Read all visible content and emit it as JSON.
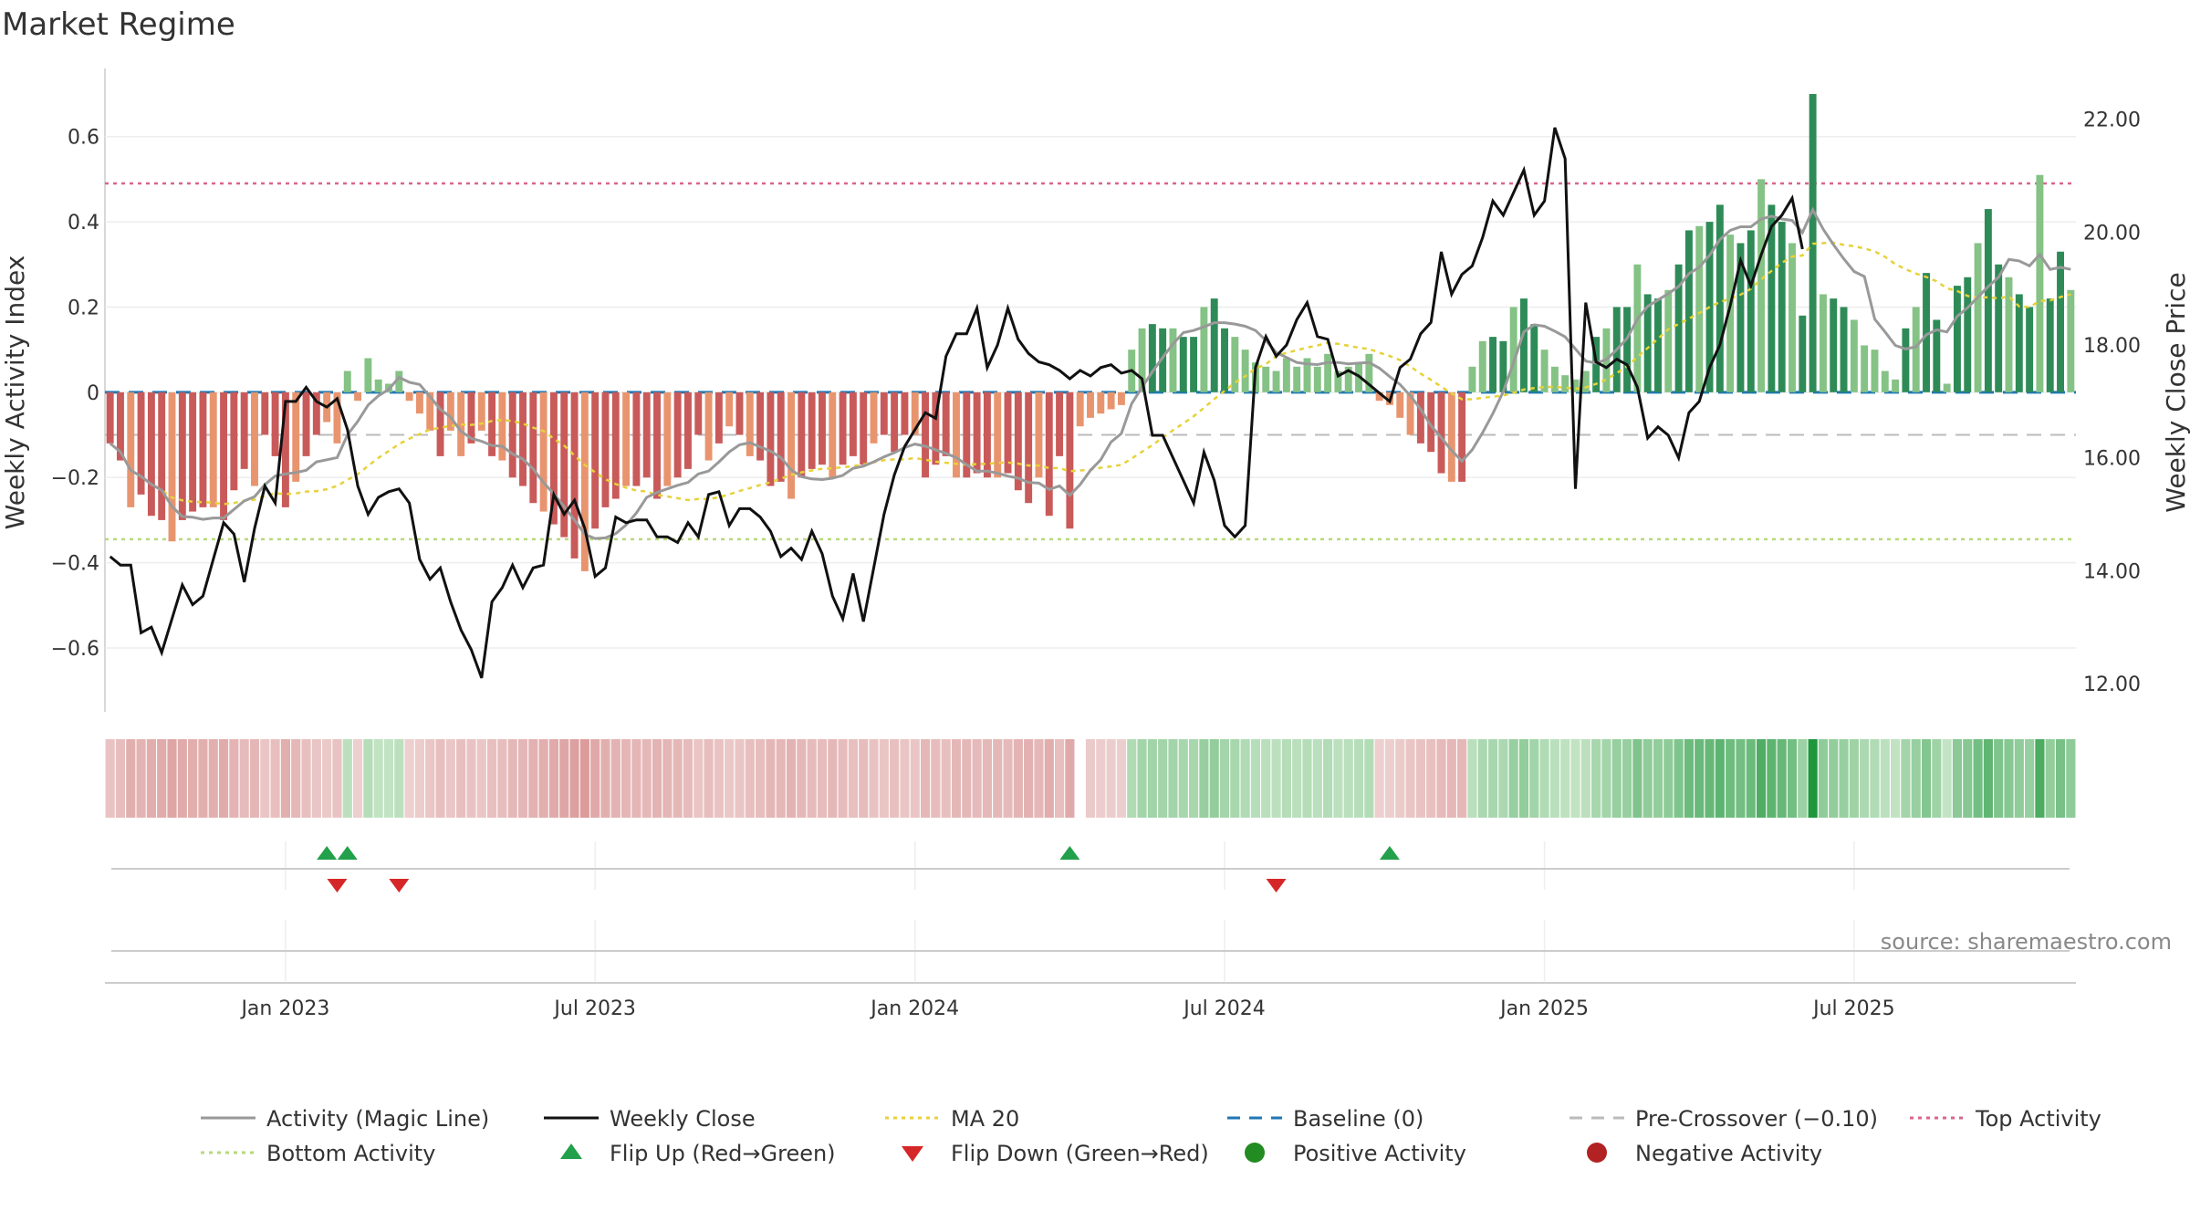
{
  "chart_data": {
    "type": "bar",
    "title": "Market Regime",
    "ylabel_left": "Weekly Activity Index",
    "ylabel_right": "Weekly Close Price",
    "ylim_left": [
      -0.75,
      0.76
    ],
    "ylim_right": [
      11.5,
      22.9
    ],
    "y_ticks_left": [
      "0.6",
      "0.4",
      "0.2",
      "0",
      "−0.2",
      "−0.4",
      "−0.6"
    ],
    "y_ticks_right": [
      "22.00",
      "20.00",
      "18.00",
      "16.00",
      "14.00",
      "12.00"
    ],
    "x_ticks": [
      "Jan 2023",
      "Jul 2023",
      "Jan 2024",
      "Jul 2024",
      "Jan 2025",
      "Jul 2025"
    ],
    "x_tick_week_index": [
      17,
      47,
      78,
      108,
      139,
      169
    ],
    "levels": {
      "top_activity": 0.49,
      "bottom_activity": -0.345,
      "pre_crossover": -0.1,
      "baseline": 0
    },
    "activity_weekly": [
      -0.12,
      -0.16,
      -0.27,
      -0.24,
      -0.29,
      -0.3,
      -0.35,
      -0.3,
      -0.28,
      -0.27,
      -0.27,
      -0.3,
      -0.23,
      -0.18,
      -0.22,
      -0.1,
      -0.15,
      -0.27,
      -0.21,
      -0.15,
      -0.1,
      -0.07,
      -0.12,
      0.05,
      -0.02,
      0.08,
      0.03,
      0.02,
      0.05,
      -0.02,
      -0.05,
      -0.09,
      -0.15,
      -0.09,
      -0.15,
      -0.12,
      -0.09,
      -0.15,
      -0.16,
      -0.2,
      -0.22,
      -0.26,
      -0.28,
      -0.31,
      -0.34,
      -0.39,
      -0.42,
      -0.32,
      -0.27,
      -0.25,
      -0.22,
      -0.22,
      -0.2,
      -0.25,
      -0.22,
      -0.2,
      -0.18,
      -0.1,
      -0.16,
      -0.12,
      -0.08,
      -0.1,
      -0.15,
      -0.16,
      -0.22,
      -0.21,
      -0.25,
      -0.2,
      -0.18,
      -0.17,
      -0.2,
      -0.17,
      -0.15,
      -0.17,
      -0.12,
      -0.1,
      -0.14,
      -0.1,
      -0.1,
      -0.2,
      -0.17,
      -0.15,
      -0.2,
      -0.2,
      -0.19,
      -0.2,
      -0.2,
      -0.19,
      -0.23,
      -0.26,
      -0.2,
      -0.29,
      -0.15,
      -0.32,
      -0.08,
      -0.06,
      -0.05,
      -0.04,
      -0.03,
      0.1,
      0.15,
      0.16,
      0.15,
      0.15,
      0.13,
      0.13,
      0.2,
      0.22,
      0.15,
      0.13,
      0.1,
      0.07,
      0.06,
      0.05,
      0.08,
      0.06,
      0.08,
      0.06,
      0.09,
      0.05,
      0.06,
      0.07,
      0.09,
      -0.02,
      -0.03,
      -0.06,
      -0.1,
      -0.12,
      -0.14,
      -0.19,
      -0.21,
      -0.21,
      0.06,
      0.12,
      0.13,
      0.12,
      0.2,
      0.22,
      0.16,
      0.1,
      0.06,
      0.04,
      0.03,
      0.05,
      0.13,
      0.15,
      0.2,
      0.2,
      0.3,
      0.23,
      0.22,
      0.24,
      0.3,
      0.38,
      0.39,
      0.4,
      0.44,
      0.37,
      0.35,
      0.38,
      0.5,
      0.44,
      0.4,
      0.35,
      0.18,
      0.7,
      0.23,
      0.22,
      0.2,
      0.17,
      0.11,
      0.1,
      0.05,
      0.03,
      0.15,
      0.2,
      0.28,
      0.17,
      0.02,
      0.25,
      0.27,
      0.35,
      0.43,
      0.3,
      0.27,
      0.23,
      0.2,
      0.51,
      0.22,
      0.33,
      0.24
    ],
    "close_weekly": [
      14.25,
      14.1,
      14.1,
      12.9,
      13.0,
      12.55,
      13.15,
      13.75,
      13.4,
      13.55,
      14.2,
      14.85,
      14.65,
      13.8,
      14.75,
      15.5,
      15.2,
      17.0,
      17.0,
      17.25,
      17.0,
      16.9,
      17.05,
      16.5,
      15.5,
      15.0,
      15.3,
      15.4,
      15.45,
      15.2,
      14.2,
      13.85,
      14.05,
      13.45,
      12.95,
      12.6,
      12.1,
      13.45,
      13.7,
      14.1,
      13.7,
      14.05,
      14.1,
      15.35,
      15.0,
      15.25,
      14.75,
      13.9,
      14.05,
      14.95,
      14.85,
      14.9,
      14.9,
      14.6,
      14.6,
      14.5,
      14.85,
      14.6,
      15.35,
      15.4,
      14.8,
      15.1,
      15.1,
      14.95,
      14.7,
      14.25,
      14.4,
      14.2,
      14.7,
      14.3,
      13.55,
      13.15,
      13.95,
      13.1,
      14.05,
      15.0,
      15.7,
      16.2,
      16.5,
      16.8,
      16.7,
      17.8,
      18.2,
      18.2,
      18.65,
      17.6,
      18.0,
      18.65,
      18.1,
      17.85,
      17.7,
      17.65,
      17.55,
      17.4,
      17.55,
      17.45,
      17.6,
      17.65,
      17.5,
      17.55,
      17.4,
      16.4,
      16.4,
      16.0,
      15.6,
      15.2,
      16.1,
      15.6,
      14.8,
      14.6,
      14.8,
      17.6,
      18.15,
      17.8,
      18.0,
      18.45,
      18.75,
      18.15,
      18.1,
      17.45,
      17.55,
      17.45,
      17.3,
      17.15,
      17.0,
      17.6,
      17.75,
      18.2,
      18.4,
      19.65,
      18.9,
      19.25,
      19.4,
      19.9,
      20.55,
      20.3,
      20.7,
      21.1,
      20.3,
      20.55,
      21.85,
      21.3,
      15.45,
      18.75,
      17.7,
      17.6,
      17.75,
      17.65,
      17.25,
      16.35,
      16.55,
      16.4,
      16.0,
      16.8,
      17.0,
      17.6,
      18.0,
      18.7,
      19.5,
      19.05,
      19.6,
      20.1,
      20.3,
      20.6,
      19.7
    ],
    "regime_strip": {
      "gap_week_index": 94,
      "note_red": "pink-red shades for negative activity",
      "note_green": "green shades for positive activity"
    },
    "flip_up_weeks": [
      21,
      23,
      93,
      124
    ],
    "flip_down_weeks": [
      22,
      28,
      113
    ]
  },
  "colors": {
    "dark_green": "#2e8b57",
    "light_green": "#85c285",
    "dark_red": "#c95a5a",
    "light_red": "#e8956f",
    "activity_line": "#999999",
    "close_line": "#111111",
    "ma20": "#e6d23a",
    "baseline": "#1f77b4",
    "pre_crossover": "#bbbbbb",
    "top_activity": "#d9668a",
    "bottom_activity": "#b7d97a",
    "flip_up": "#22a04b",
    "flip_down": "#d62728",
    "positive_dot": "#228b22",
    "negative_dot": "#b22222"
  },
  "legend": [
    {
      "label": "Activity (Magic Line)",
      "symbol": "line",
      "color": "#999999",
      "dash": ""
    },
    {
      "label": "Weekly Close",
      "symbol": "line",
      "color": "#111111",
      "dash": ""
    },
    {
      "label": "MA 20",
      "symbol": "line",
      "color": "#e6d23a",
      "dash": "4,5"
    },
    {
      "label": "Baseline (0)",
      "symbol": "line",
      "color": "#1f77b4",
      "dash": "14,10"
    },
    {
      "label": "Pre-Crossover (−0.10)",
      "symbol": "line",
      "color": "#bbbbbb",
      "dash": "14,10"
    },
    {
      "label": "Top Activity",
      "symbol": "line",
      "color": "#d9668a",
      "dash": "4,5"
    },
    {
      "label": "Bottom Activity",
      "symbol": "line",
      "color": "#b7d97a",
      "dash": "4,5"
    },
    {
      "label": "Flip Up (Red→Green)",
      "symbol": "up",
      "color": "#22a04b",
      "dash": ""
    },
    {
      "label": "Flip Down (Green→Red)",
      "symbol": "down",
      "color": "#d62728",
      "dash": ""
    },
    {
      "label": "Positive Activity",
      "symbol": "dot",
      "color": "#228b22",
      "dash": ""
    },
    {
      "label": "Negative Activity",
      "symbol": "dot",
      "color": "#b22222",
      "dash": ""
    }
  ],
  "source": "source: sharemaestro.com"
}
